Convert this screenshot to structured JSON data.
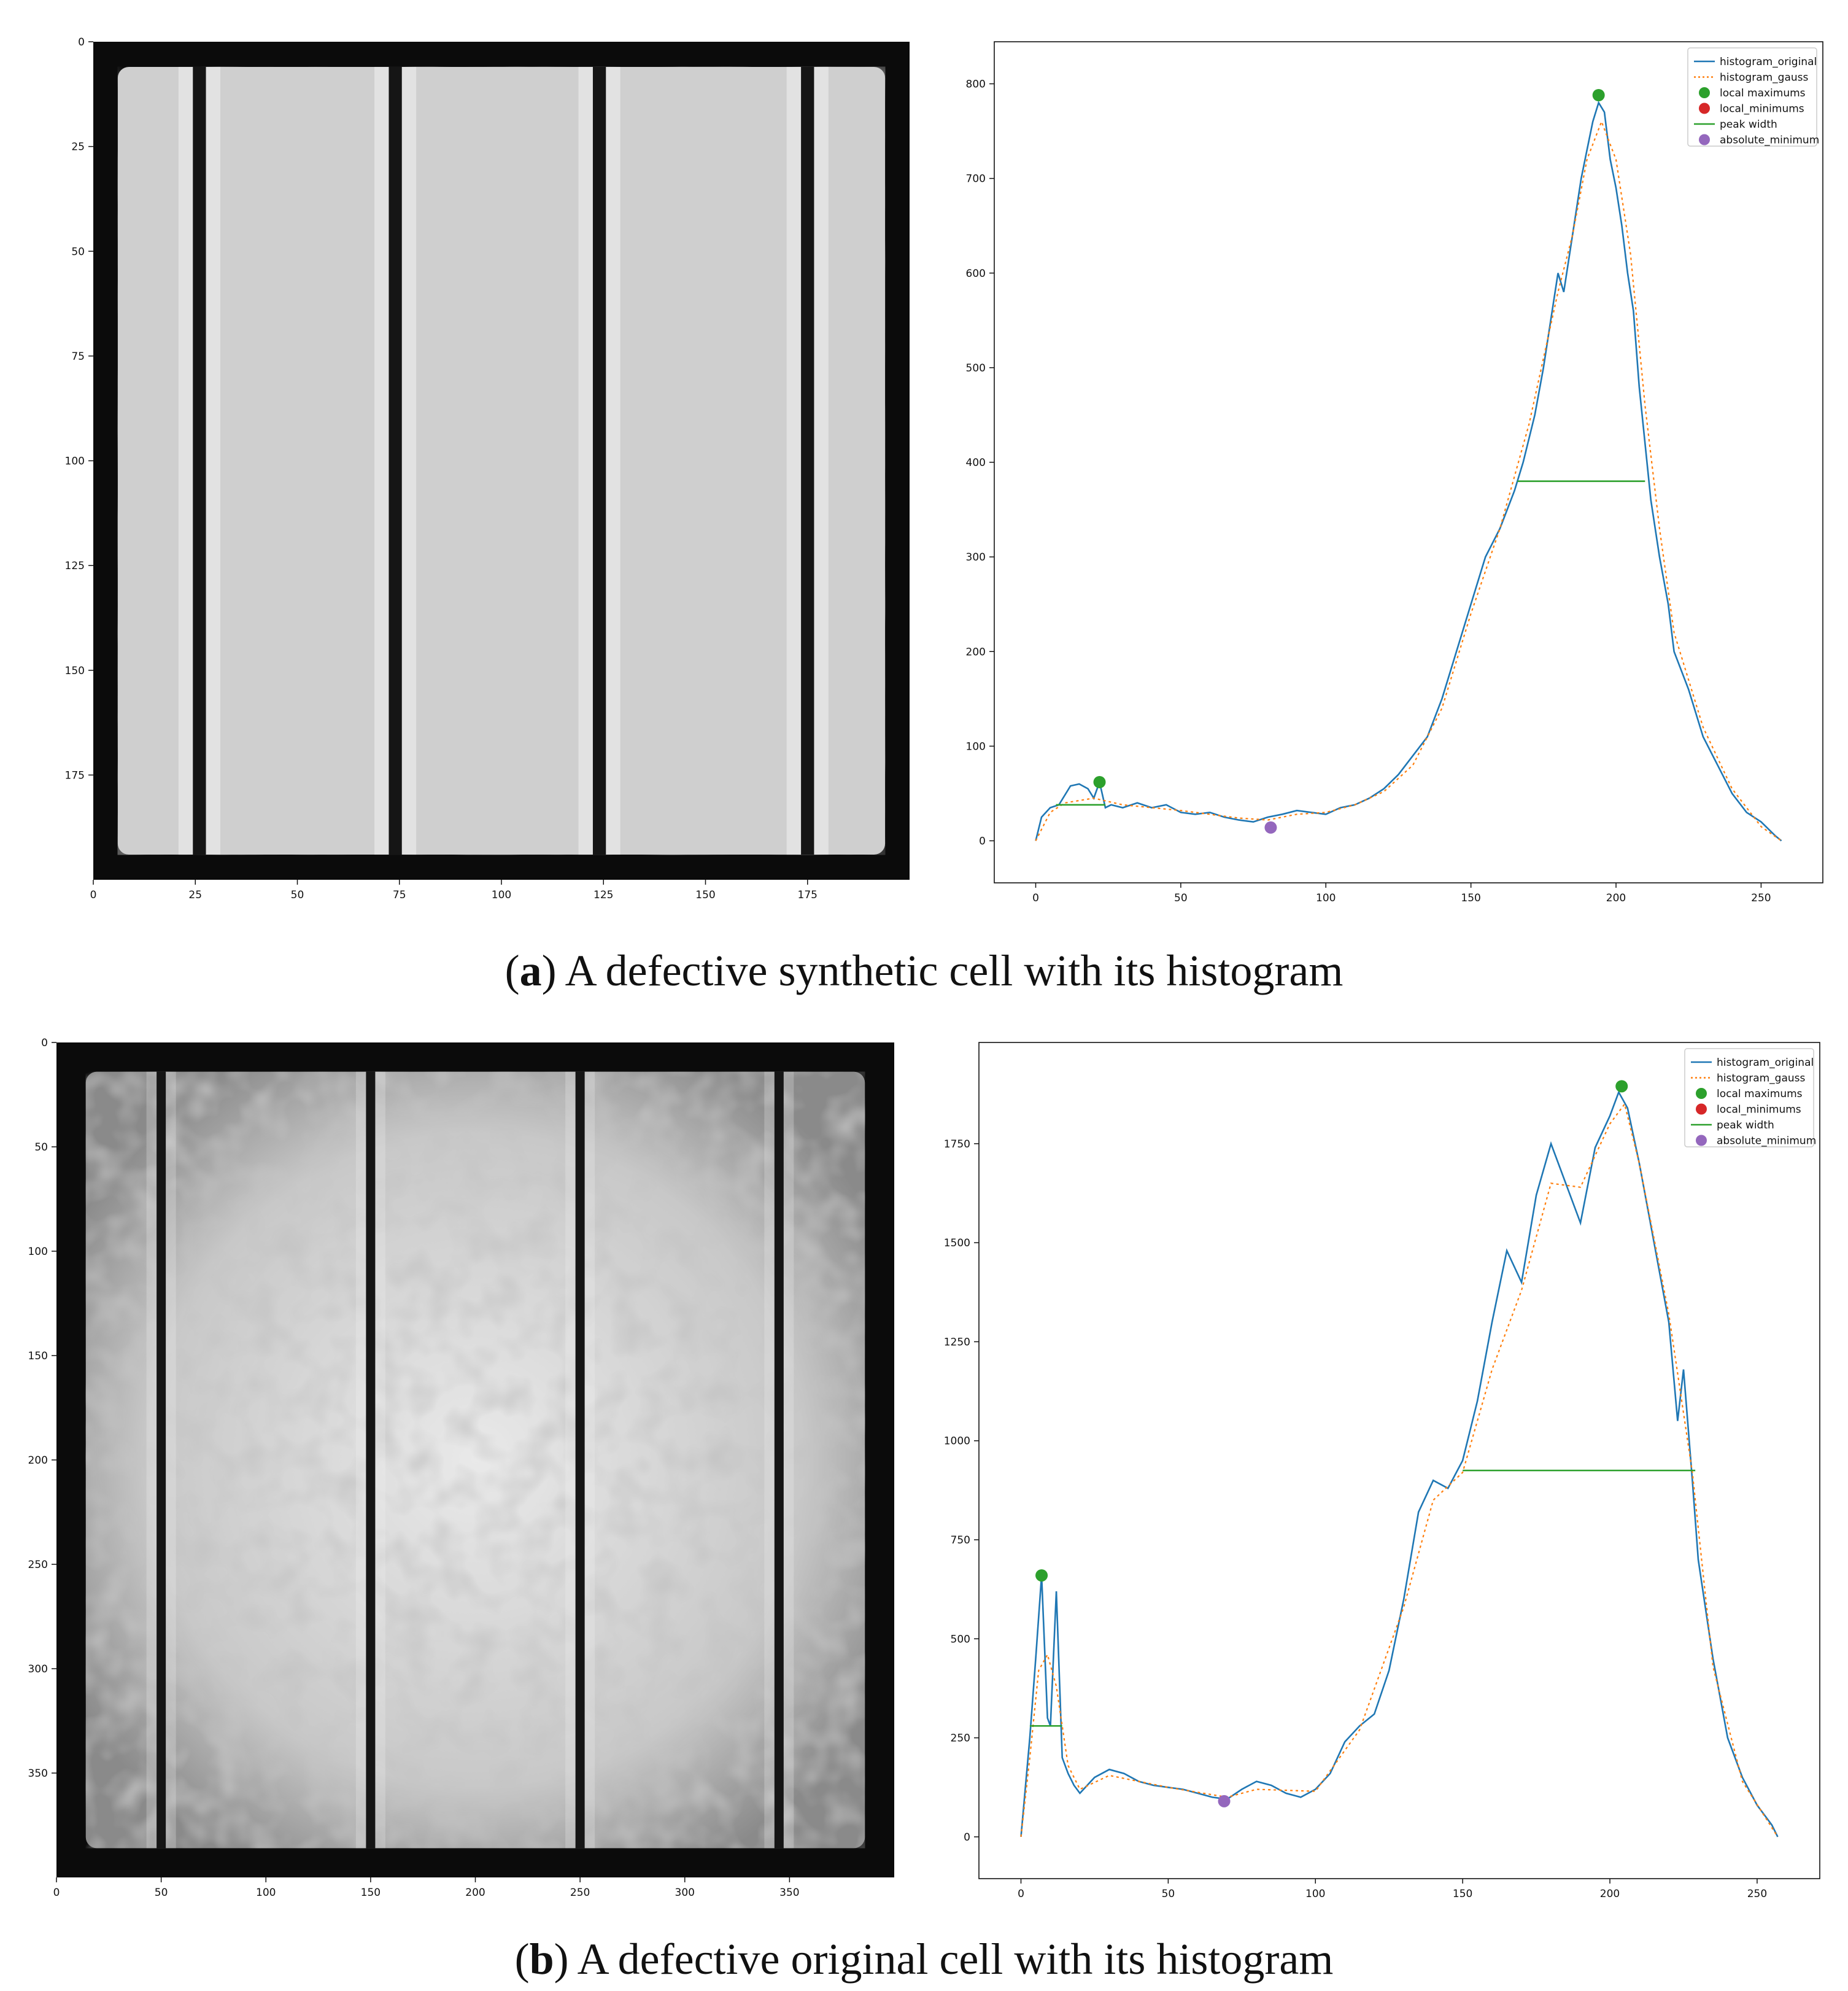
{
  "chart_data": [
    {
      "type": "heatmap",
      "xlim": [
        0,
        200
      ],
      "ylim": [
        0,
        200
      ],
      "x_ticks": [
        0,
        25,
        50,
        75,
        100,
        125,
        150,
        175
      ],
      "y_ticks": [
        0,
        25,
        50,
        75,
        100,
        125,
        150,
        175
      ],
      "busbars_x": [
        26,
        74,
        124,
        175
      ],
      "tone": "blotchy gray defective synthetic cell"
    },
    {
      "type": "line",
      "xlim": [
        0,
        257
      ],
      "ylim": [
        0,
        800
      ],
      "x_ticks": [
        0,
        50,
        100,
        150,
        200,
        250
      ],
      "y_ticks": [
        0,
        100,
        200,
        300,
        400,
        500,
        600,
        700,
        800
      ],
      "legend": [
        "histogram_original",
        "histogram_gauss",
        "local maximums",
        "local_minimums",
        "peak width",
        "absolute_minimum"
      ],
      "legend_position": "top-right",
      "series": [
        {
          "name": "histogram_original",
          "color": "#1f77b4",
          "x": [
            0,
            2,
            5,
            8,
            12,
            15,
            18,
            20,
            22,
            24,
            26,
            30,
            35,
            40,
            45,
            50,
            55,
            60,
            65,
            70,
            75,
            80,
            85,
            90,
            95,
            100,
            105,
            110,
            115,
            120,
            125,
            130,
            135,
            140,
            145,
            150,
            155,
            160,
            165,
            168,
            172,
            175,
            178,
            180,
            182,
            185,
            188,
            190,
            192,
            194,
            196,
            198,
            200,
            202,
            204,
            206,
            208,
            210,
            212,
            215,
            218,
            220,
            225,
            230,
            235,
            240,
            245,
            250,
            255,
            257
          ],
          "values": [
            0,
            25,
            35,
            38,
            58,
            60,
            55,
            45,
            62,
            35,
            38,
            35,
            40,
            35,
            38,
            30,
            28,
            30,
            25,
            22,
            20,
            25,
            28,
            32,
            30,
            28,
            35,
            38,
            45,
            55,
            70,
            90,
            110,
            150,
            200,
            250,
            300,
            330,
            370,
            400,
            450,
            500,
            560,
            600,
            580,
            640,
            700,
            730,
            760,
            780,
            770,
            720,
            690,
            650,
            600,
            560,
            480,
            420,
            360,
            300,
            250,
            200,
            160,
            110,
            80,
            50,
            30,
            20,
            5,
            0
          ]
        },
        {
          "name": "histogram_gauss",
          "color": "#ff7f0e",
          "x": [
            0,
            5,
            10,
            20,
            30,
            50,
            70,
            80,
            90,
            100,
            110,
            120,
            130,
            140,
            150,
            160,
            170,
            180,
            185,
            190,
            195,
            200,
            205,
            210,
            215,
            220,
            230,
            240,
            250,
            257
          ],
          "values": [
            0,
            30,
            40,
            45,
            38,
            32,
            24,
            22,
            28,
            30,
            38,
            52,
            80,
            140,
            240,
            330,
            440,
            580,
            640,
            720,
            760,
            720,
            620,
            460,
            330,
            220,
            120,
            55,
            15,
            0
          ]
        }
      ],
      "local_maximums": [
        {
          "x": 22,
          "y": 62
        },
        {
          "x": 194,
          "y": 788
        }
      ],
      "absolute_minimum": {
        "x": 81,
        "y": 14
      },
      "peak_widths": [
        {
          "x1": 7,
          "x2": 24,
          "y": 38
        },
        {
          "x1": 166,
          "x2": 210,
          "y": 380
        }
      ]
    },
    {
      "type": "heatmap",
      "xlim": [
        0,
        400
      ],
      "ylim": [
        0,
        400
      ],
      "x_ticks": [
        0,
        50,
        100,
        150,
        200,
        250,
        300,
        350
      ],
      "y_ticks": [
        0,
        50,
        100,
        150,
        200,
        250,
        300,
        350
      ],
      "busbars_x": [
        50,
        150,
        250,
        345
      ],
      "tone": "light gray defective original cell"
    },
    {
      "type": "line",
      "xlim": [
        0,
        257
      ],
      "ylim": [
        0,
        1900
      ],
      "x_ticks": [
        0,
        50,
        100,
        150,
        200,
        250
      ],
      "y_ticks": [
        0,
        250,
        500,
        750,
        1000,
        1250,
        1500,
        1750
      ],
      "legend": [
        "histogram_original",
        "histogram_gauss",
        "local maximums",
        "local_minimums",
        "peak width",
        "absolute_minimum"
      ],
      "legend_position": "top-right",
      "series": [
        {
          "name": "histogram_original",
          "color": "#1f77b4",
          "x": [
            0,
            3,
            5,
            7,
            9,
            10,
            12,
            14,
            16,
            18,
            20,
            25,
            30,
            35,
            40,
            45,
            50,
            55,
            60,
            65,
            70,
            75,
            80,
            85,
            90,
            95,
            100,
            105,
            110,
            115,
            120,
            125,
            130,
            135,
            140,
            145,
            150,
            155,
            160,
            165,
            170,
            175,
            180,
            185,
            190,
            195,
            200,
            203,
            206,
            210,
            215,
            220,
            223,
            225,
            228,
            230,
            235,
            240,
            245,
            250,
            255,
            257
          ],
          "values": [
            0,
            250,
            450,
            660,
            300,
            280,
            620,
            200,
            160,
            130,
            110,
            150,
            170,
            160,
            140,
            130,
            125,
            120,
            110,
            100,
            95,
            120,
            140,
            130,
            110,
            100,
            120,
            160,
            240,
            280,
            310,
            420,
            600,
            820,
            900,
            880,
            950,
            1100,
            1300,
            1480,
            1400,
            1620,
            1750,
            1650,
            1550,
            1740,
            1820,
            1880,
            1840,
            1700,
            1500,
            1300,
            1050,
            1180,
            900,
            700,
            450,
            250,
            150,
            80,
            30,
            0
          ]
        },
        {
          "name": "histogram_gauss",
          "color": "#ff7f0e",
          "x": [
            0,
            3,
            6,
            9,
            12,
            16,
            20,
            30,
            50,
            70,
            80,
            100,
            115,
            130,
            140,
            150,
            160,
            170,
            180,
            190,
            200,
            205,
            210,
            220,
            228,
            235,
            245,
            257
          ],
          "values": [
            0,
            200,
            420,
            460,
            380,
            180,
            120,
            155,
            125,
            100,
            120,
            115,
            270,
            580,
            850,
            920,
            1180,
            1380,
            1650,
            1640,
            1800,
            1850,
            1700,
            1320,
            920,
            430,
            140,
            0
          ]
        }
      ],
      "local_maximums": [
        {
          "x": 7,
          "y": 660
        },
        {
          "x": 204,
          "y": 1895
        }
      ],
      "absolute_minimum": {
        "x": 69,
        "y": 90
      },
      "peak_widths": [
        {
          "x1": 3,
          "x2": 14,
          "y": 280
        },
        {
          "x1": 150,
          "x2": 229,
          "y": 925
        }
      ]
    }
  ],
  "captions": {
    "a": {
      "letter": "a",
      "text": ") A defective synthetic cell with its histogram"
    },
    "b": {
      "letter": "b",
      "text": ") A defective original cell with its histogram"
    }
  }
}
